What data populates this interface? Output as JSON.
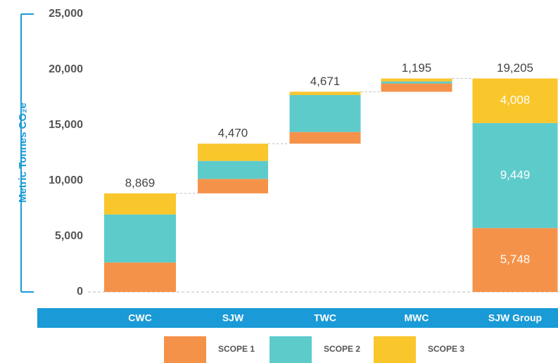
{
  "chart_data": {
    "type": "waterfall",
    "y_label": "Metric Tonnes CO₂e",
    "categories": [
      "CWC",
      "SJW",
      "TWC",
      "MWC",
      "SJW Group"
    ],
    "series": [
      {
        "name": "SCOPE 1",
        "color": "#f5924a",
        "values": [
          2650,
          1300,
          1050,
          748,
          5748
        ],
        "value_labels": [
          null,
          null,
          null,
          null,
          "5,748"
        ]
      },
      {
        "name": "SCOPE 2",
        "color": "#5ecbcb",
        "values": [
          4320,
          1620,
          3330,
          179,
          9449
        ],
        "value_labels": [
          null,
          null,
          null,
          null,
          "9,449"
        ]
      },
      {
        "name": "SCOPE 3",
        "color": "#f9c62b",
        "values": [
          1899,
          1550,
          291,
          268,
          4008
        ],
        "value_labels": [
          null,
          null,
          null,
          null,
          "4,008"
        ]
      }
    ],
    "totals": [
      8869,
      4470,
      4671,
      1195,
      19205
    ],
    "total_labels": [
      "8,869",
      "4,470",
      "4,671",
      "1,195",
      "19,205"
    ],
    "ylim": [
      0,
      25000
    ],
    "yticks": [
      0,
      {
        "value": 5000,
        "label": "5,000"
      },
      {
        "value": 10000,
        "label": "10,000"
      },
      {
        "value": 15000,
        "label": "15,000"
      },
      {
        "value": 20000,
        "label": "20,000"
      },
      {
        "value": 25000,
        "label": "25,000"
      }
    ]
  }
}
